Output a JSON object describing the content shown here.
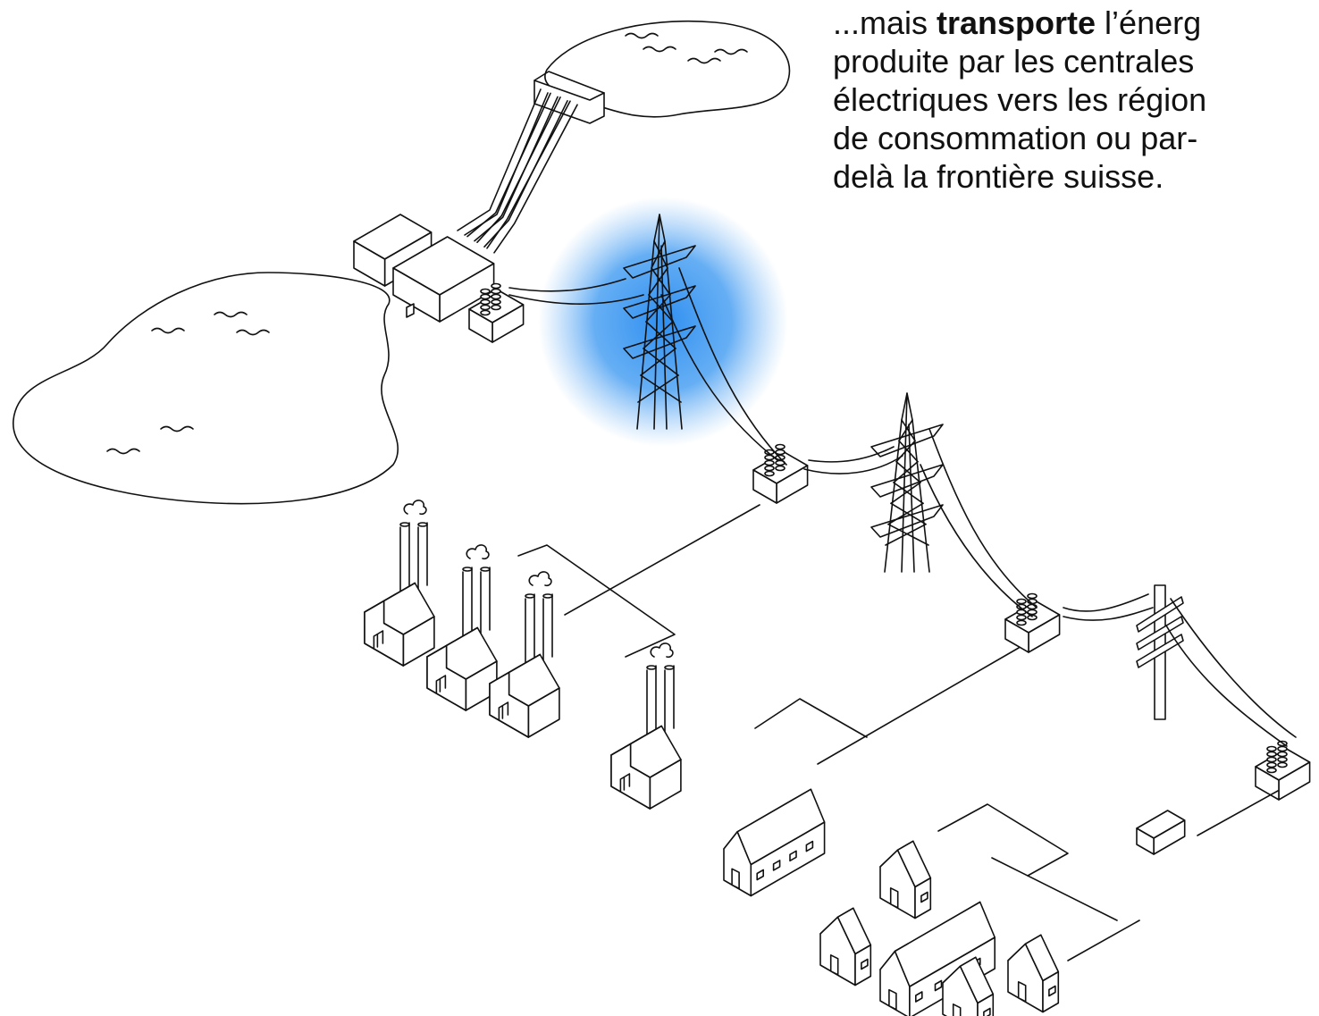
{
  "text": {
    "lead": "...mais ",
    "emphasis": "transporte",
    "rest": " l’énerg",
    "lines": [
      "produite par les centrales",
      "électriques vers les région",
      "de consommation ou par-",
      "delà la frontière suisse."
    ]
  }
}
